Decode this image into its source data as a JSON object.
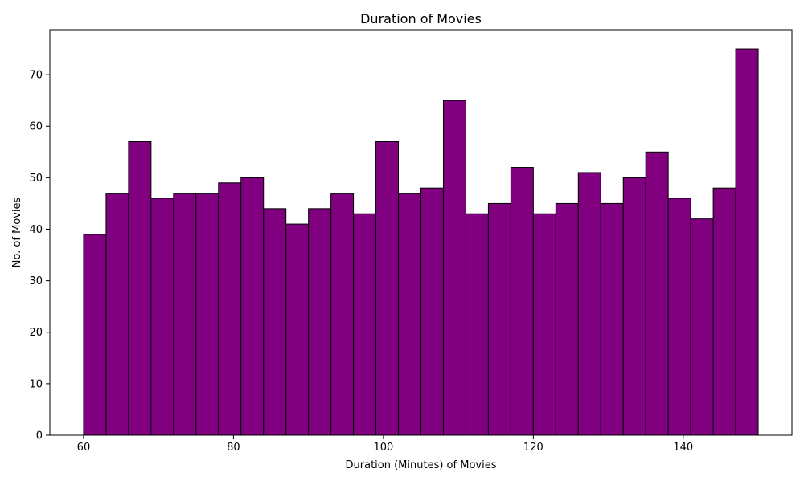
{
  "chart_data": {
    "type": "bar",
    "subtype": "histogram",
    "title": "Duration of Movies",
    "xlabel": "Duration (Minutes) of Movies",
    "ylabel": "No. of Movies",
    "bins": {
      "start": 60,
      "end": 150,
      "count": 30,
      "edges": [
        60,
        63,
        66,
        69,
        72,
        75,
        78,
        81,
        84,
        87,
        90,
        93,
        96,
        99,
        102,
        105,
        108,
        111,
        114,
        117,
        120,
        123,
        126,
        129,
        132,
        135,
        138,
        141,
        144,
        147,
        150
      ]
    },
    "values": [
      39,
      47,
      57,
      46,
      47,
      47,
      49,
      50,
      44,
      41,
      44,
      47,
      43,
      57,
      47,
      48,
      65,
      43,
      45,
      52,
      43,
      45,
      51,
      45,
      50,
      55,
      46,
      42,
      48,
      75
    ],
    "xlim": [
      55.5,
      154.5
    ],
    "ylim": [
      0,
      78.75
    ],
    "xticks": [
      60,
      80,
      100,
      120,
      140
    ],
    "yticks": [
      0,
      10,
      20,
      30,
      40,
      50,
      60,
      70
    ],
    "bar_color": "#800080",
    "edge_color": "#000000",
    "grid": false,
    "legend": false
  }
}
